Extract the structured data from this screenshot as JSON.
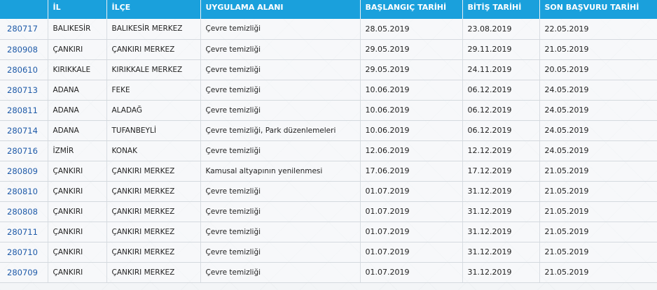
{
  "table": {
    "headers": [
      "",
      "İL",
      "İLÇE",
      "UYGULAMA ALANI",
      "BAŞLANGIÇ TARİHİ",
      "BİTİŞ TARİHİ",
      "SON BAŞVURU TARİHİ"
    ],
    "rows": [
      {
        "no": "280717",
        "il": "BALIKESİR",
        "ilce": "BALIKESİR MERKEZ",
        "alan": "Çevre temizliği",
        "baslangic": "28.05.2019",
        "bitis": "23.08.2019",
        "son": "22.05.2019"
      },
      {
        "no": "280908",
        "il": "ÇANKIRI",
        "ilce": "ÇANKIRI MERKEZ",
        "alan": "Çevre temizliği",
        "baslangic": "29.05.2019",
        "bitis": "29.11.2019",
        "son": "21.05.2019"
      },
      {
        "no": "280610",
        "il": "KIRIKKALE",
        "ilce": "KIRIKKALE MERKEZ",
        "alan": "Çevre temizliği",
        "baslangic": "29.05.2019",
        "bitis": "24.11.2019",
        "son": "20.05.2019"
      },
      {
        "no": "280713",
        "il": "ADANA",
        "ilce": "FEKE",
        "alan": "Çevre temizliği",
        "baslangic": "10.06.2019",
        "bitis": "06.12.2019",
        "son": "24.05.2019"
      },
      {
        "no": "280811",
        "il": "ADANA",
        "ilce": "ALADAĞ",
        "alan": "Çevre temizliği",
        "baslangic": "10.06.2019",
        "bitis": "06.12.2019",
        "son": "24.05.2019"
      },
      {
        "no": "280714",
        "il": "ADANA",
        "ilce": "TUFANBEYLİ",
        "alan": "Çevre temizliği, Park düzenlemeleri",
        "baslangic": "10.06.2019",
        "bitis": "06.12.2019",
        "son": "24.05.2019"
      },
      {
        "no": "280716",
        "il": "İZMİR",
        "ilce": "KONAK",
        "alan": "Çevre temizliği",
        "baslangic": "12.06.2019",
        "bitis": "12.12.2019",
        "son": "24.05.2019"
      },
      {
        "no": "280809",
        "il": "ÇANKIRI",
        "ilce": "ÇANKIRI MERKEZ",
        "alan": "Kamusal altyapının yenilenmesi",
        "baslangic": "17.06.2019",
        "bitis": "17.12.2019",
        "son": "21.05.2019"
      },
      {
        "no": "280810",
        "il": "ÇANKIRI",
        "ilce": "ÇANKIRI MERKEZ",
        "alan": "Çevre temizliği",
        "baslangic": "01.07.2019",
        "bitis": "31.12.2019",
        "son": "21.05.2019"
      },
      {
        "no": "280808",
        "il": "ÇANKIRI",
        "ilce": "ÇANKIRI MERKEZ",
        "alan": "Çevre temizliği",
        "baslangic": "01.07.2019",
        "bitis": "31.12.2019",
        "son": "21.05.2019"
      },
      {
        "no": "280711",
        "il": "ÇANKIRI",
        "ilce": "ÇANKIRI MERKEZ",
        "alan": "Çevre temizliği",
        "baslangic": "01.07.2019",
        "bitis": "31.12.2019",
        "son": "21.05.2019"
      },
      {
        "no": "280710",
        "il": "ÇANKIRI",
        "ilce": "ÇANKIRI MERKEZ",
        "alan": "Çevre temizliği",
        "baslangic": "01.07.2019",
        "bitis": "31.12.2019",
        "son": "21.05.2019"
      },
      {
        "no": "280709",
        "il": "ÇANKIRI",
        "ilce": "ÇANKIRI MERKEZ",
        "alan": "Çevre temizliği",
        "baslangic": "01.07.2019",
        "bitis": "31.12.2019",
        "son": "21.05.2019"
      }
    ]
  }
}
